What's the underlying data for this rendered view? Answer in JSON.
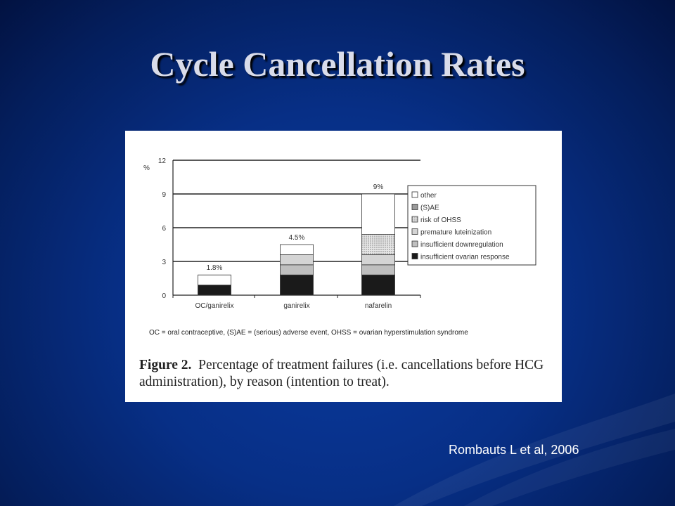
{
  "slide": {
    "title": "Cycle Cancellation Rates",
    "citation": "Rombauts L et al, 2006"
  },
  "figure": {
    "footnote": "OC = oral contraceptive, (S)AE = (serious) adverse event, OHSS = ovarian hyperstimulation syndrome",
    "caption_prefix": "Figure 2.",
    "caption_text": "Percentage of treatment failures (i.e. cancellations before HCG administration), by reason (intention to treat)."
  },
  "chart_data": {
    "type": "bar",
    "stacked": true,
    "ylabel": "%",
    "ylim": [
      0,
      12
    ],
    "yticks": [
      0,
      3,
      6,
      9,
      12
    ],
    "grid": true,
    "legend_position": "right",
    "categories": [
      "OC/ganirelix",
      "ganirelix",
      "nafarelin"
    ],
    "totals_labels": [
      "1.8%",
      "4.5%",
      "9%"
    ],
    "series": [
      {
        "name": "insufficient ovarian response",
        "values": [
          0.9,
          1.8,
          1.8
        ],
        "color": "#1a1a1a",
        "pattern": "solid"
      },
      {
        "name": "insufficient downregulation",
        "values": [
          0,
          0.9,
          0.9
        ],
        "color": "#bfbfbf",
        "pattern": "solid"
      },
      {
        "name": "premature luteinization",
        "values": [
          0,
          0.9,
          0.9
        ],
        "color": "#d4d4d4",
        "pattern": "solid"
      },
      {
        "name": "risk of OHSS",
        "values": [
          0,
          0,
          1.8
        ],
        "color": "#cfcfcf",
        "pattern": "dots"
      },
      {
        "name": "(S)AE",
        "values": [
          0,
          0,
          0
        ],
        "color": "#9a9a9a",
        "pattern": "solid"
      },
      {
        "name": "other",
        "values": [
          0.9,
          0.9,
          3.6
        ],
        "color": "#ffffff",
        "pattern": "solid"
      }
    ]
  }
}
